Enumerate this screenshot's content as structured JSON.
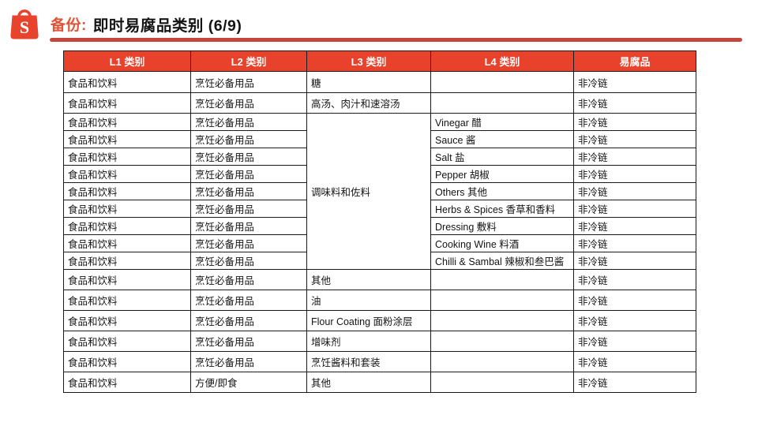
{
  "header": {
    "prefix": "备份:",
    "title": "即时易腐品类别  (6/9)"
  },
  "logo": {
    "name": "shopee-logo",
    "letter": "S",
    "color": "#E8432C"
  },
  "colors": {
    "accent_red": "#E8412C",
    "underline_red": "#C7463B",
    "border": "#1b1b1b"
  },
  "table": {
    "headers": [
      "L1 类别",
      "L2 类别",
      "L3 类别",
      "L4 类别",
      "易腐品"
    ],
    "merged_l3": {
      "label": "调味料和佐料",
      "start_row_index": 2,
      "row_span": 9
    },
    "rows": [
      {
        "l1": "食品和饮料",
        "l2": "烹饪必备用品",
        "l3": "糖",
        "l4": "",
        "perishable": "非冷链"
      },
      {
        "l1": "食品和饮料",
        "l2": "烹饪必备用品",
        "l3": "高汤、肉汁和速溶汤",
        "l4": "",
        "perishable": "非冷链"
      },
      {
        "l1": "食品和饮料",
        "l2": "烹饪必备用品",
        "l3": null,
        "l4": "Vinegar 醋",
        "perishable": "非冷链"
      },
      {
        "l1": "食品和饮料",
        "l2": "烹饪必备用品",
        "l3": null,
        "l4": "Sauce 酱",
        "perishable": "非冷链"
      },
      {
        "l1": "食品和饮料",
        "l2": "烹饪必备用品",
        "l3": null,
        "l4": "Salt 盐",
        "perishable": "非冷链"
      },
      {
        "l1": "食品和饮料",
        "l2": "烹饪必备用品",
        "l3": null,
        "l4": "Pepper 胡椒",
        "perishable": "非冷链"
      },
      {
        "l1": "食品和饮料",
        "l2": "烹饪必备用品",
        "l3": null,
        "l4": "Others 其他",
        "perishable": "非冷链"
      },
      {
        "l1": "食品和饮料",
        "l2": "烹饪必备用品",
        "l3": null,
        "l4": "Herbs & Spices 香草和香料",
        "perishable": "非冷链"
      },
      {
        "l1": "食品和饮料",
        "l2": "烹饪必备用品",
        "l3": null,
        "l4": "Dressing 敷料",
        "perishable": "非冷链"
      },
      {
        "l1": "食品和饮料",
        "l2": "烹饪必备用品",
        "l3": null,
        "l4": "Cooking Wine 料酒",
        "perishable": "非冷链"
      },
      {
        "l1": "食品和饮料",
        "l2": "烹饪必备用品",
        "l3": null,
        "l4": "Chilli & Sambal 辣椒和叁巴酱",
        "perishable": "非冷链"
      },
      {
        "l1": "食品和饮料",
        "l2": "烹饪必备用品",
        "l3": "其他",
        "l4": "",
        "perishable": "非冷链"
      },
      {
        "l1": "食品和饮料",
        "l2": "烹饪必备用品",
        "l3": "油",
        "l4": "",
        "perishable": "非冷链"
      },
      {
        "l1": "食品和饮料",
        "l2": "烹饪必备用品",
        "l3": "Flour Coating 面粉涂层",
        "l4": "",
        "perishable": "非冷链"
      },
      {
        "l1": "食品和饮料",
        "l2": "烹饪必备用品",
        "l3": "增味剂",
        "l4": "",
        "perishable": "非冷链"
      },
      {
        "l1": "食品和饮料",
        "l2": "烹饪必备用品",
        "l3": "烹饪酱料和套装",
        "l4": "",
        "perishable": "非冷链"
      },
      {
        "l1": "食品和饮料",
        "l2": "方便/即食",
        "l3": "其他",
        "l4": "",
        "perishable": "非冷链"
      }
    ]
  }
}
